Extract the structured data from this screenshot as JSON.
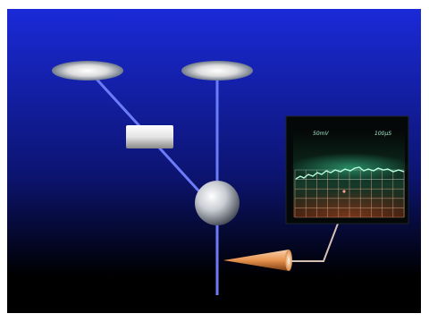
{
  "oscilloscope": {
    "left_label": "50mV",
    "right_label": "100µS"
  },
  "colors": {
    "background_top": "#1a2ad8",
    "background_bottom": "#000000",
    "beam": "#5c6cf4",
    "trace": "#7fe0b0",
    "grid_upper": "#b9c8c2",
    "grid_lower": "#d8a684",
    "cone_base": "#e8924e",
    "cable": "#d6c0b4",
    "lens": "#f4f4f4",
    "screen_bg": "#050808"
  },
  "icons": {
    "lens_left": "ellipse-lens-icon",
    "lens_right": "ellipse-lens-icon",
    "beam_splitter": "rectangular-block-icon",
    "sample": "sphere-icon",
    "detector": "cone-detector-icon",
    "display": "oscilloscope-icon"
  }
}
